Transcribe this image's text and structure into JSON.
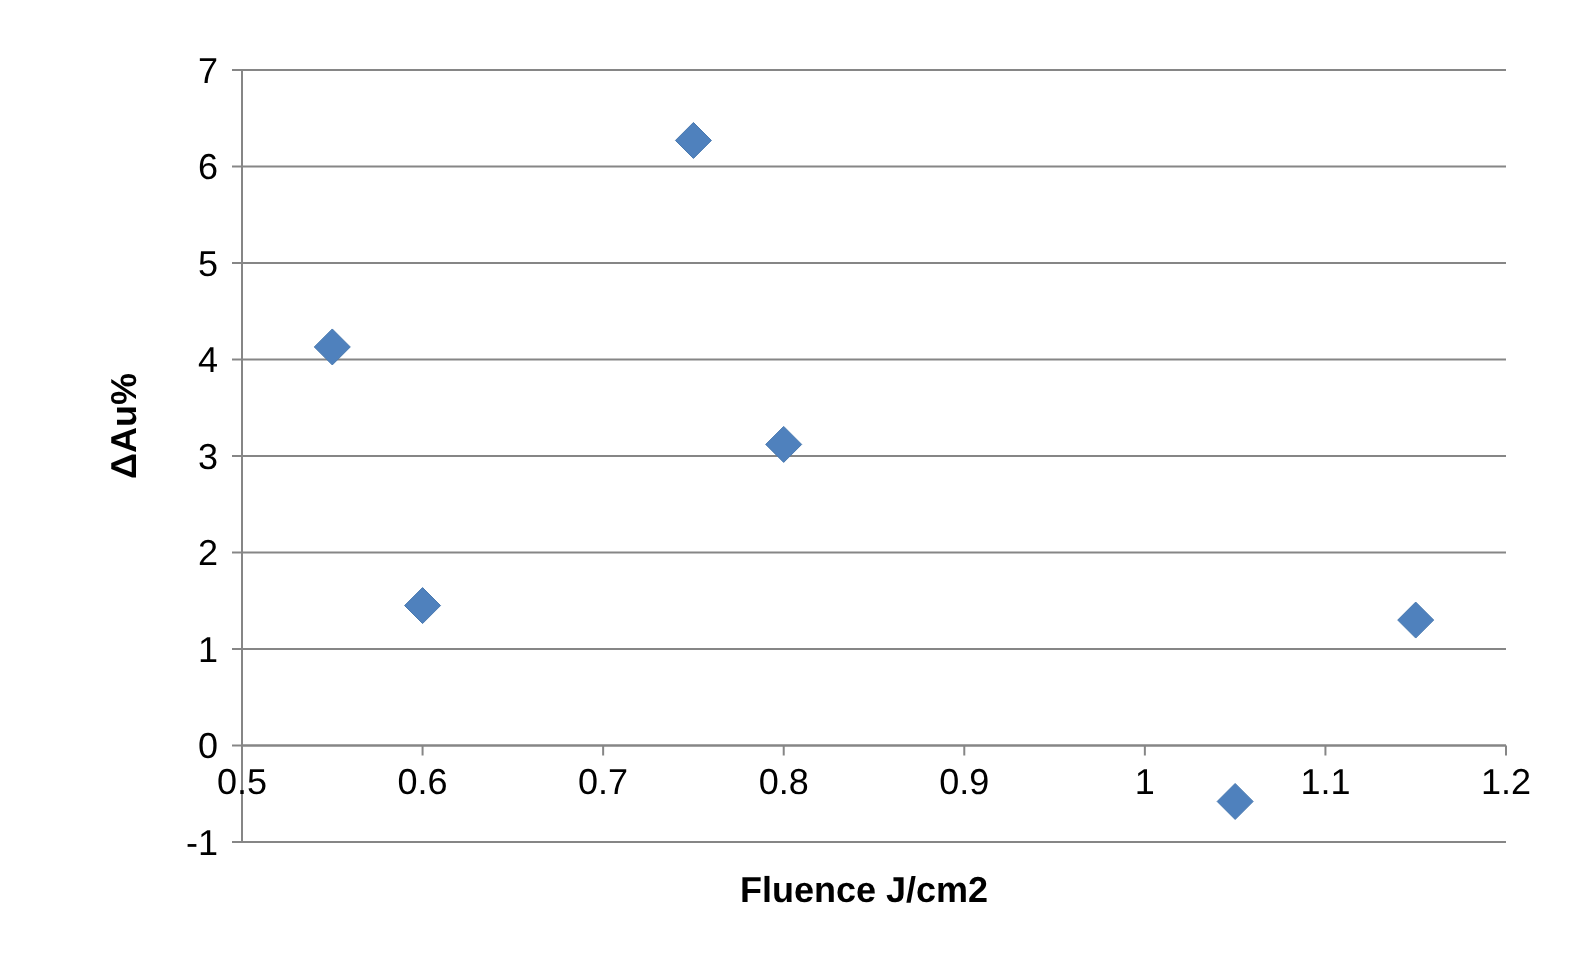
{
  "chart_data": {
    "type": "scatter",
    "xlabel": "Fluence J/cm2",
    "ylabel": "ΔAu%",
    "x": [
      0.55,
      0.6,
      0.75,
      0.8,
      1.05,
      1.15
    ],
    "values": [
      4.13,
      1.45,
      6.27,
      3.12,
      -0.58,
      1.3
    ],
    "color": "#4f81bd",
    "marker": "diamond",
    "xlim": [
      0.5,
      1.2
    ],
    "xticks": [
      0.5,
      0.6,
      0.7,
      0.8,
      0.9,
      1,
      1.1,
      1.2
    ],
    "ylim": [
      -1,
      7
    ],
    "yticks": [
      -1,
      0,
      1,
      2,
      3,
      4,
      5,
      6,
      7
    ],
    "grid": "y"
  }
}
